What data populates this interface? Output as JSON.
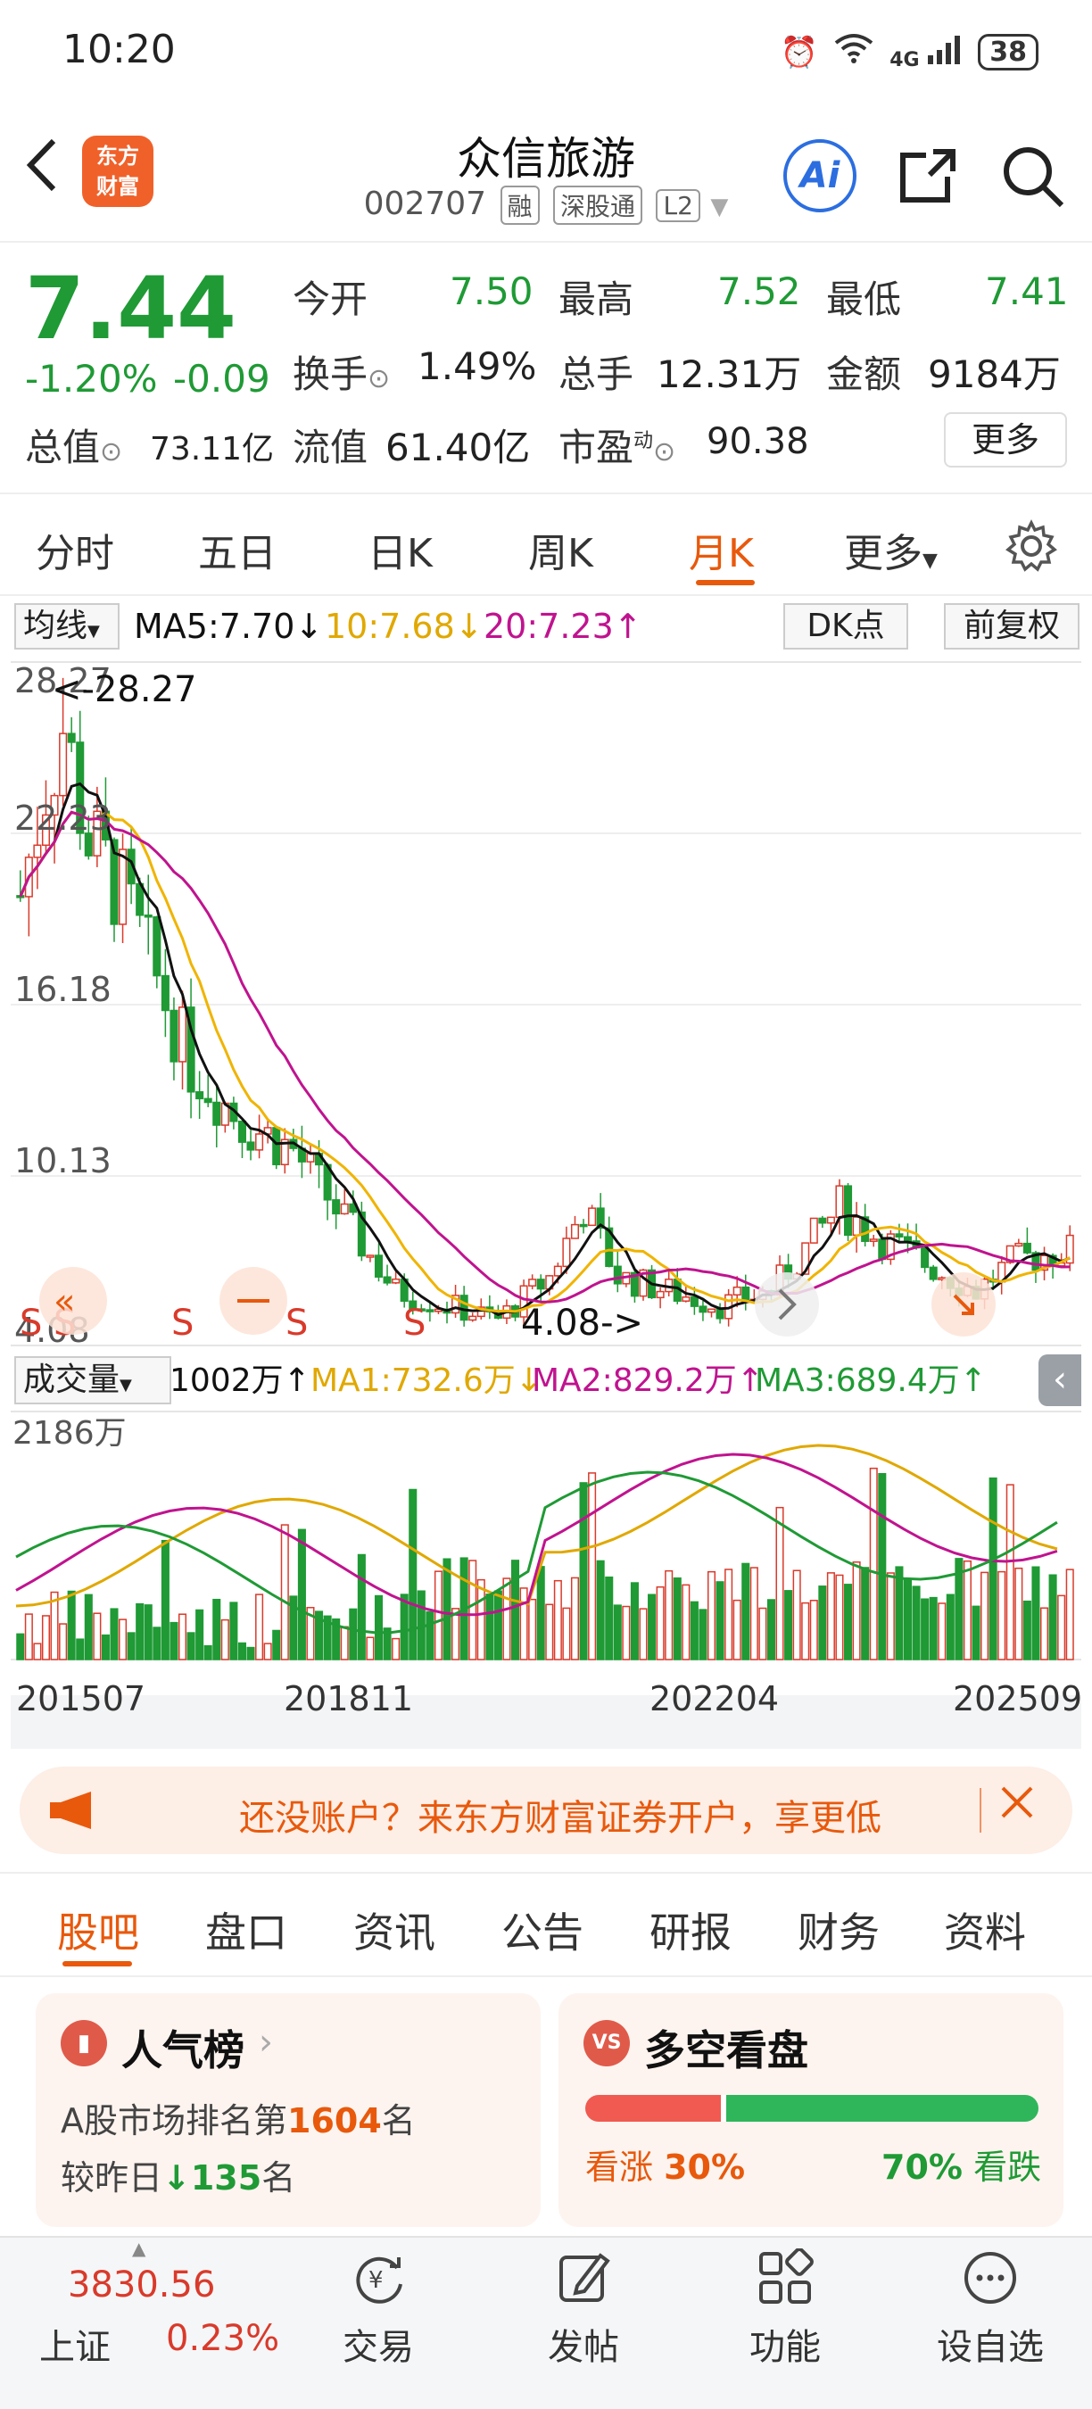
{
  "status_bar": {
    "time": "10:20",
    "network": "4G",
    "battery": "38"
  },
  "header": {
    "logo_line1": "东方",
    "logo_line2": "财富",
    "stock_name": "众信旅游",
    "stock_code": "002707",
    "tags": [
      "融",
      "深股通",
      "L2"
    ],
    "ai_label": "Ai"
  },
  "quote": {
    "price": "7.44",
    "change_pct": "-1.20%",
    "change_abs": "-0.09",
    "open_label": "今开",
    "open": "7.50",
    "high_label": "最高",
    "high": "7.52",
    "low_label": "最低",
    "low": "7.41",
    "turnover_label": "换手",
    "turnover": "1.49%",
    "volume_label": "总手",
    "volume": "12.31万",
    "amount_label": "金额",
    "amount": "9184万",
    "mktcap_label": "总值",
    "mktcap": "73.11亿",
    "float_label": "流值",
    "float": "61.40亿",
    "pe_label": "市盈",
    "pe_sup": "动",
    "pe": "90.38",
    "more_label": "更多"
  },
  "period_tabs": [
    "分时",
    "五日",
    "日K",
    "周K",
    "月K",
    "更多"
  ],
  "active_period": "月K",
  "indicator": {
    "ma_select": "均线",
    "ma5": "MA5:7.70↓",
    "ma10": "10:7.68↓",
    "ma20": "20:7.23↑",
    "dk_label": "DK点",
    "adjust_label": "前复权",
    "colors": {
      "ma5": "#111111",
      "ma10": "#f0b400",
      "ma20": "#c0138f"
    }
  },
  "kline": {
    "price_ticks": [
      "28.27",
      "22.23",
      "16.18",
      "10.13",
      "4.08"
    ],
    "max_label": "<-28.27",
    "min_label": "4.08->",
    "signal_marks": [
      "S",
      "S",
      "S",
      "S",
      "S",
      "S"
    ]
  },
  "volume": {
    "select_label": "成交量",
    "current": "1002万↑",
    "ma1": "MA1:732.6万↓",
    "ma2": "MA2:829.2万↑",
    "ma3": "MA3:689.4万↑",
    "max_label": "2186万",
    "x_labels": [
      "201507",
      "201811",
      "202204",
      "202509"
    ]
  },
  "banner": {
    "text": "还没账户？来东方财富证券开户，享更低"
  },
  "content_tabs": [
    "股吧",
    "盘口",
    "资讯",
    "公告",
    "研报",
    "财务",
    "资料"
  ],
  "active_content_tab": "股吧",
  "popularity_card": {
    "title": "人气榜",
    "line1_prefix": "A股市场排名第",
    "rank": "1604",
    "line1_suffix": "名",
    "line2_prefix": "较昨日",
    "delta": "135",
    "line2_suffix": "名"
  },
  "bull_bear_card": {
    "title": "多空看盘",
    "icon_text": "VS",
    "bull_label": "看涨",
    "bull_pct": "30%",
    "bear_pct": "70%",
    "bear_label": "看跌",
    "bull_fraction": 0.3
  },
  "bottom_nav": {
    "index_value": "3830.56",
    "index_name": "上证",
    "index_change": "0.23%",
    "items": [
      "交易",
      "发帖",
      "功能",
      "设自选"
    ]
  }
}
